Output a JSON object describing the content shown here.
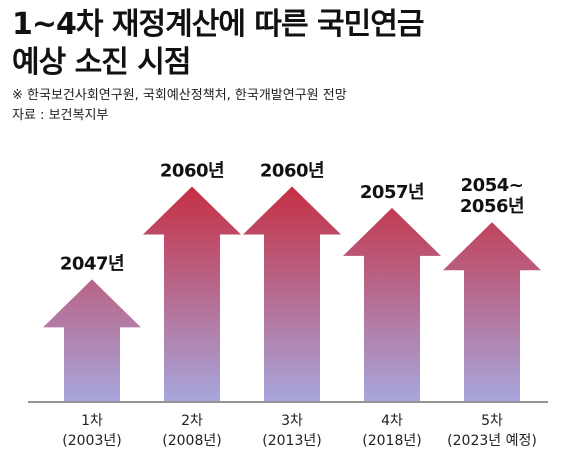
{
  "header": {
    "title_line1": "1~4차 재정계산에 따른 국민연금",
    "title_line2": "예상 소진 시점",
    "note_line1": "※ 한국보건사회연구원, 국회예산정책처, 한국개발연구원 전망",
    "note_line2": "자료 : 보건복지부"
  },
  "colors": {
    "arrow_top": "#c8202f",
    "arrow_bottom": "#a8a6dc",
    "axis": "#555555"
  },
  "chart_data": {
    "type": "bar",
    "categories": [
      [
        "1차",
        "(2003년)"
      ],
      [
        "2차",
        "(2008년)"
      ],
      [
        "3차",
        "(2013년)"
      ],
      [
        "4차",
        "(2018년)"
      ],
      [
        "5차",
        "(2023년 예정)"
      ]
    ],
    "values": [
      2047,
      2060,
      2060,
      2057,
      2055
    ],
    "data_labels": [
      [
        "2047년"
      ],
      [
        "2060년"
      ],
      [
        "2060년"
      ],
      [
        "2057년"
      ],
      [
        "2054~",
        "2056년"
      ]
    ],
    "ylim": [
      2030,
      2063
    ]
  }
}
